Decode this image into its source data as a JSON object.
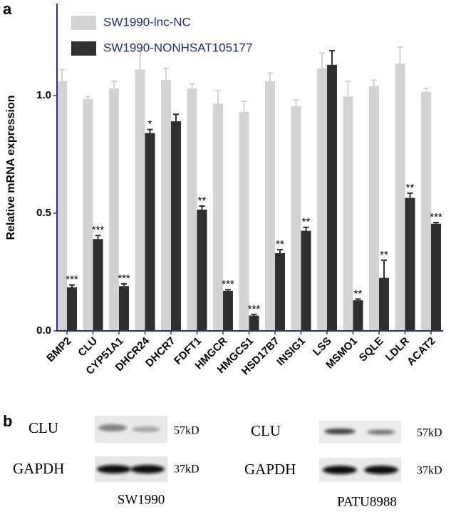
{
  "chart_data": {
    "type": "bar",
    "panel_label": "a",
    "y_label": "Relative mRNA expression",
    "categories": [
      "BMP2",
      "CLU",
      "CYP51A1",
      "DHCR24",
      "DHCR7",
      "FDFT1",
      "HMGCR",
      "HMGCS1",
      "HSD17B7",
      "INSIG1",
      "LSS",
      "MSMO1",
      "SQLE",
      "LDLR",
      "ACAT2"
    ],
    "series": [
      {
        "name": "SW1990-lnc-NC",
        "color": "#d3d3d3",
        "values": [
          1.06,
          0.985,
          1.03,
          1.11,
          1.065,
          1.03,
          0.965,
          0.93,
          1.06,
          0.955,
          1.115,
          0.995,
          1.04,
          1.135,
          1.015
        ],
        "errors": [
          0.05,
          0.01,
          0.03,
          0.08,
          0.05,
          0.02,
          0.055,
          0.045,
          0.035,
          0.025,
          0.065,
          0.065,
          0.025,
          0.07,
          0.015
        ]
      },
      {
        "name": "SW1990-NONHSAT105177",
        "color": "#2f2f2f",
        "values": [
          0.185,
          0.39,
          0.19,
          0.84,
          0.89,
          0.515,
          0.17,
          0.065,
          0.33,
          0.425,
          1.13,
          0.13,
          0.225,
          0.565,
          0.455
        ],
        "errors": [
          0.01,
          0.015,
          0.01,
          0.015,
          0.03,
          0.015,
          0.005,
          0.005,
          0.015,
          0.015,
          0.06,
          0.005,
          0.075,
          0.02,
          0.005
        ],
        "annotations": [
          "***",
          "***",
          "***",
          "*",
          null,
          "**",
          "***",
          "***",
          "**",
          "**",
          null,
          "**",
          "**",
          "**",
          "***"
        ]
      }
    ],
    "ylim": [
      0,
      1.39
    ],
    "yticks": [
      {
        "value": 0,
        "label": "0.0"
      },
      0.5,
      {
        "value": 1,
        "label": "1.0"
      }
    ],
    "axis_color": "#2b2f8a",
    "legend_text_color": "#1f2a7a",
    "legend": "upper left"
  },
  "panel_b": {
    "label": "b",
    "blots": [
      {
        "cell_line": "SW1990",
        "proteins": [
          "CLU",
          "GAPDH"
        ],
        "sizes": [
          "57kD",
          "37kD"
        ]
      },
      {
        "cell_line": "PATU8988",
        "proteins": [
          "CLU",
          "GAPDH"
        ],
        "sizes": [
          "57kD",
          "37kD"
        ]
      }
    ]
  }
}
